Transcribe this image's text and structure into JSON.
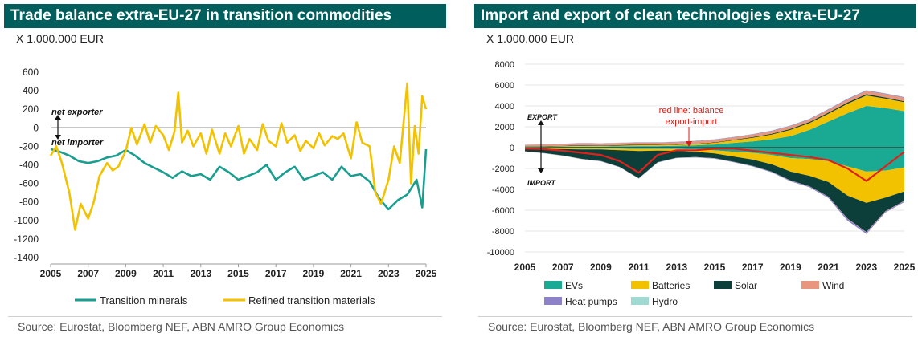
{
  "left_panel": {
    "title": "Trade balance extra-EU-27 in transition commodities",
    "unit": "X 1.000.000 EUR",
    "source": "Source: Eurostat, Bloomberg NEF, ABN AMRO Group Economics"
  },
  "right_panel": {
    "title": "Import and export of clean technologies extra-EU-27",
    "unit": "X 1.000.000 EUR",
    "source": "Source: Eurostat, Bloomberg NEF, ABN AMRO Group Economics"
  },
  "chart_data": [
    {
      "type": "line",
      "title": "Trade balance extra-EU-27 in transition commodities",
      "ylabel": "X 1.000.000 EUR",
      "ylim": [
        -1400,
        600
      ],
      "yticks": [
        600,
        400,
        200,
        0,
        -200,
        -400,
        -600,
        -800,
        -1000,
        -1200,
        -1400
      ],
      "xticks": [
        "2005",
        "2007",
        "2009",
        "2011",
        "2013",
        "2015",
        "2017",
        "2019",
        "2021",
        "2023",
        "2025"
      ],
      "xlim": [
        2005,
        2025
      ],
      "grid": false,
      "legend_position": "bottom",
      "annotations": [
        "net exporter",
        "net importer"
      ],
      "series": [
        {
          "name": "Transition minerals",
          "color": "#1a9e8f",
          "x": [
            2005.0,
            2005.5,
            2006.0,
            2006.5,
            2007.0,
            2007.5,
            2008.0,
            2008.5,
            2009.0,
            2009.5,
            2010.0,
            2010.5,
            2011.0,
            2011.5,
            2012.0,
            2012.5,
            2013.0,
            2013.5,
            2014.0,
            2014.5,
            2015.0,
            2015.5,
            2016.0,
            2016.5,
            2017.0,
            2017.5,
            2018.0,
            2018.5,
            2019.0,
            2019.5,
            2020.0,
            2020.5,
            2021.0,
            2021.5,
            2022.0,
            2022.5,
            2023.0,
            2023.5,
            2024.0,
            2024.5,
            2024.8,
            2025.0
          ],
          "y": [
            -230,
            -260,
            -300,
            -360,
            -380,
            -360,
            -320,
            -300,
            -240,
            -300,
            -380,
            -430,
            -480,
            -540,
            -470,
            -520,
            -500,
            -560,
            -420,
            -480,
            -560,
            -520,
            -480,
            -400,
            -560,
            -480,
            -420,
            -560,
            -520,
            -480,
            -560,
            -420,
            -520,
            -500,
            -580,
            -760,
            -880,
            -780,
            -720,
            -560,
            -860,
            -230
          ]
        },
        {
          "name": "Refined transition materials",
          "color": "#f2c200",
          "x": [
            2005.0,
            2005.3,
            2005.6,
            2006.0,
            2006.3,
            2006.6,
            2007.0,
            2007.3,
            2007.6,
            2008.0,
            2008.3,
            2008.6,
            2009.0,
            2009.3,
            2009.6,
            2010.0,
            2010.3,
            2010.6,
            2011.0,
            2011.3,
            2011.6,
            2011.8,
            2012.0,
            2012.3,
            2012.6,
            2013.0,
            2013.3,
            2013.6,
            2014.0,
            2014.3,
            2014.6,
            2015.0,
            2015.3,
            2015.6,
            2016.0,
            2016.3,
            2016.6,
            2017.0,
            2017.3,
            2017.6,
            2018.0,
            2018.3,
            2018.6,
            2019.0,
            2019.3,
            2019.6,
            2020.0,
            2020.3,
            2020.6,
            2021.0,
            2021.3,
            2021.6,
            2022.0,
            2022.3,
            2022.6,
            2023.0,
            2023.3,
            2023.6,
            2024.0,
            2024.2,
            2024.4,
            2024.6,
            2024.8,
            2025.0
          ],
          "y": [
            -300,
            -200,
            -380,
            -700,
            -1100,
            -820,
            -980,
            -800,
            -520,
            -380,
            -460,
            -420,
            -250,
            0,
            -180,
            40,
            -160,
            20,
            -80,
            -240,
            -40,
            380,
            -160,
            -30,
            -200,
            -60,
            -280,
            -20,
            -280,
            -60,
            -200,
            20,
            -280,
            -120,
            -240,
            40,
            -140,
            -200,
            50,
            -160,
            -80,
            -250,
            -140,
            -220,
            -60,
            -190,
            -90,
            -120,
            -60,
            -330,
            60,
            -160,
            -200,
            -700,
            -820,
            -560,
            -200,
            -380,
            480,
            -600,
            20,
            -280,
            340,
            200
          ]
        }
      ]
    },
    {
      "type": "area",
      "title": "Import and export of clean technologies extra-EU-27",
      "ylabel": "X 1.000.000 EUR",
      "ylim": [
        -10000,
        8000
      ],
      "yticks": [
        8000,
        6000,
        4000,
        2000,
        0,
        -2000,
        -4000,
        -6000,
        -8000,
        -10000
      ],
      "xticks": [
        "2005",
        "2007",
        "2009",
        "2011",
        "2013",
        "2015",
        "2017",
        "2019",
        "2021",
        "2023",
        "2025"
      ],
      "xlim": [
        2005,
        2025
      ],
      "grid": true,
      "legend_position": "bottom",
      "annotations": [
        "EXPORT",
        "IMPORT",
        "red line: balance",
        "export-import"
      ],
      "balance_color": "#e0201b",
      "x": [
        2005,
        2006,
        2007,
        2008,
        2009,
        2010,
        2011,
        2012,
        2013,
        2014,
        2015,
        2016,
        2017,
        2018,
        2019,
        2020,
        2021,
        2022,
        2023,
        2024,
        2025
      ],
      "series": [
        {
          "name": "EVs",
          "color": "#1aaa93",
          "export": [
            60,
            70,
            80,
            100,
            100,
            120,
            150,
            150,
            180,
            220,
            300,
            450,
            600,
            800,
            1100,
            1700,
            2500,
            3300,
            4000,
            3800,
            3500
          ],
          "import": [
            -40,
            -50,
            -60,
            -80,
            -80,
            -100,
            -130,
            -120,
            -140,
            -180,
            -260,
            -400,
            -500,
            -700,
            -1000,
            -1100,
            -1300,
            -1800,
            -2300,
            -2200,
            -1900
          ]
        },
        {
          "name": "Batteries",
          "color": "#f2c200",
          "export": [
            40,
            40,
            50,
            60,
            60,
            70,
            80,
            80,
            90,
            120,
            160,
            250,
            350,
            450,
            600,
            650,
            750,
            900,
            1000,
            900,
            850
          ],
          "import": [
            -60,
            -70,
            -90,
            -100,
            -100,
            -150,
            -200,
            -170,
            -170,
            -230,
            -300,
            -450,
            -650,
            -900,
            -1300,
            -1600,
            -2000,
            -2800,
            -3000,
            -2600,
            -2300
          ]
        },
        {
          "name": "Solar",
          "color": "#0d3f3a",
          "export": [
            30,
            40,
            50,
            60,
            50,
            60,
            60,
            40,
            40,
            40,
            50,
            50,
            60,
            80,
            100,
            110,
            120,
            130,
            120,
            110,
            100
          ],
          "import": [
            -250,
            -400,
            -600,
            -900,
            -1100,
            -1600,
            -2600,
            -1100,
            -650,
            -500,
            -450,
            -500,
            -600,
            -700,
            -850,
            -1000,
            -1400,
            -2200,
            -2800,
            -1300,
            -900
          ]
        },
        {
          "name": "Wind",
          "color": "#e8977e",
          "export": [
            120,
            140,
            160,
            190,
            170,
            180,
            190,
            200,
            210,
            230,
            240,
            230,
            240,
            250,
            260,
            240,
            260,
            280,
            300,
            320,
            330
          ],
          "import": [
            -10,
            -10,
            -10,
            -10,
            -10,
            -10,
            -10,
            -10,
            -10,
            -10,
            -10,
            -10,
            -10,
            -10,
            -10,
            -10,
            -20,
            -30,
            -30,
            -30,
            -30
          ]
        },
        {
          "name": "Heat pumps",
          "color": "#8d82c8",
          "export": [
            20,
            20,
            20,
            25,
            25,
            25,
            30,
            30,
            30,
            35,
            35,
            35,
            40,
            45,
            50,
            55,
            60,
            70,
            70,
            60,
            60
          ],
          "import": [
            -20,
            -20,
            -20,
            -25,
            -25,
            -25,
            -30,
            -30,
            -30,
            -35,
            -40,
            -40,
            -50,
            -60,
            -70,
            -90,
            -120,
            -170,
            -150,
            -100,
            -90
          ]
        },
        {
          "name": "Hydro",
          "color": "#9fd9d1",
          "export": [
            20,
            20,
            20,
            20,
            20,
            20,
            20,
            20,
            20,
            20,
            20,
            20,
            20,
            20,
            20,
            20,
            20,
            20,
            20,
            20,
            20
          ],
          "import": [
            -5,
            -5,
            -5,
            -5,
            -5,
            -5,
            -5,
            -5,
            -5,
            -5,
            -5,
            -5,
            -5,
            -5,
            -5,
            -5,
            -5,
            -5,
            -5,
            -5,
            -5
          ]
        }
      ],
      "balance": [
        -100,
        -150,
        -300,
        -500,
        -700,
        -1300,
        -2400,
        -700,
        -250,
        -250,
        -100,
        -100,
        -300,
        -500,
        -700,
        -900,
        -1200,
        -2000,
        -3200,
        -1800,
        -400
      ]
    }
  ]
}
